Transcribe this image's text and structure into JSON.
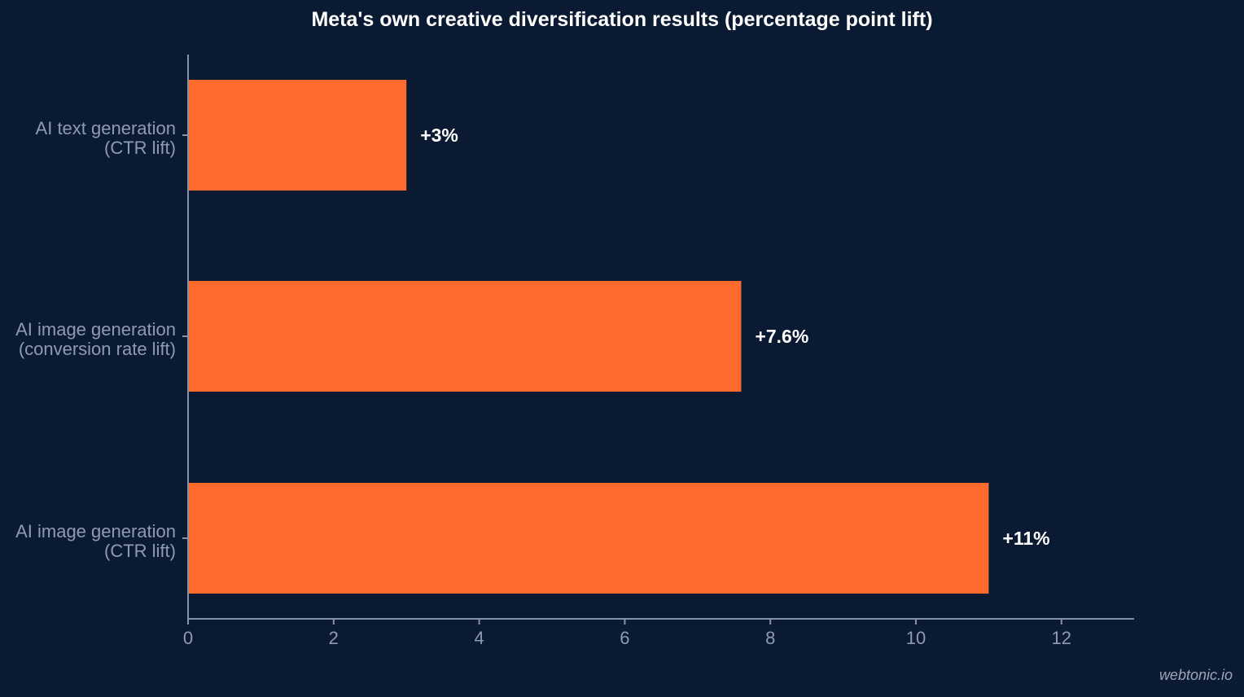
{
  "chart_data": {
    "type": "bar",
    "orientation": "horizontal",
    "title": "Meta's own creative diversification results (percentage point lift)",
    "xlabel": "",
    "ylabel": "",
    "categories": [
      [
        "AI text generation",
        "(CTR lift)"
      ],
      [
        "AI image generation",
        "(conversion rate lift)"
      ],
      [
        "AI image generation",
        "(CTR lift)"
      ]
    ],
    "values": [
      3,
      7.6,
      11
    ],
    "data_labels": [
      "+3%",
      "+7.6%",
      "+11%"
    ],
    "x_ticks": [
      "0",
      "2",
      "4",
      "6",
      "8",
      "10",
      "12"
    ],
    "xlim": [
      0,
      13
    ],
    "grid": false,
    "legend": "none",
    "colors": {
      "background": "#0b1a33",
      "bar": "#ff6b2c",
      "axis": "#8892a6",
      "tick_label": "#8e9ab0",
      "data_label": "#ffffff",
      "title": "#ffffff"
    }
  },
  "watermark": "webtonic.io"
}
